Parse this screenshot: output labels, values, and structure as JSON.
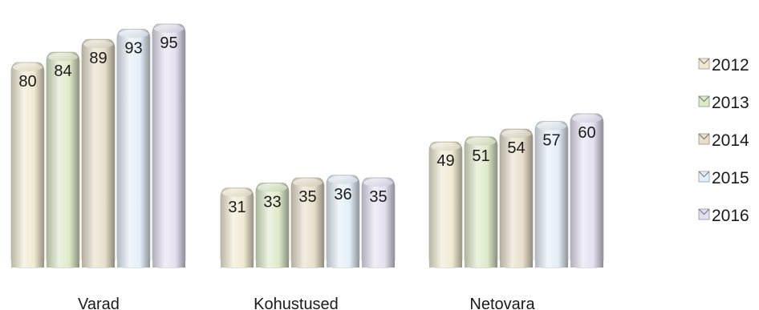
{
  "chart_data": {
    "type": "bar",
    "categories": [
      "Varad",
      "Kohustused",
      "Netovara"
    ],
    "series": [
      {
        "name": "2012",
        "values": [
          80,
          31,
          49
        ],
        "color": "#f0ead2"
      },
      {
        "name": "2013",
        "values": [
          84,
          33,
          51
        ],
        "color": "#dde9c8"
      },
      {
        "name": "2014",
        "values": [
          89,
          35,
          54
        ],
        "color": "#e7dfca"
      },
      {
        "name": "2015",
        "values": [
          93,
          36,
          57
        ],
        "color": "#e4eef7"
      },
      {
        "name": "2016",
        "values": [
          95,
          35,
          60
        ],
        "color": "#e4e0f1"
      }
    ],
    "title": "",
    "xlabel": "",
    "ylabel": "",
    "ylim": [
      0,
      100
    ],
    "grid": false,
    "legend": "right"
  }
}
